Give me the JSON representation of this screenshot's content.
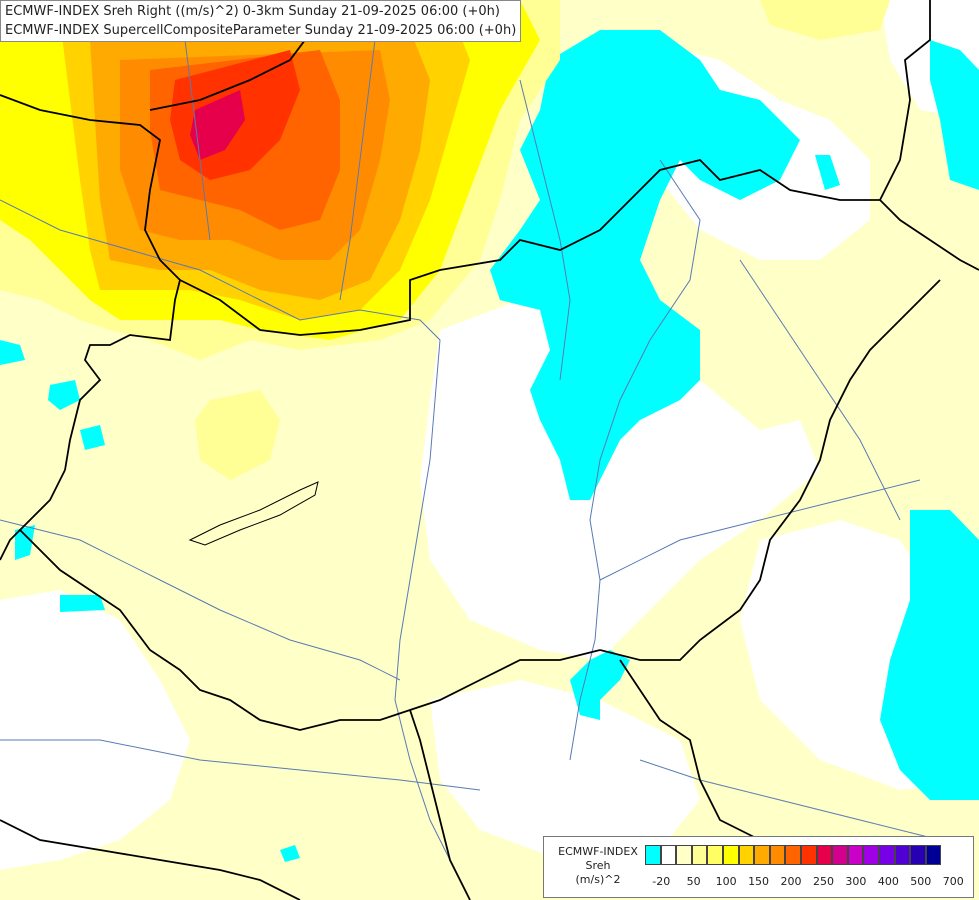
{
  "header": {
    "line1": "ECMWF-INDEX Sreh Right ((m/s)^2) 0-3km Sunday 21-09-2025 06:00 (+0h)",
    "line2": "ECMWF-INDEX SupercellCompositeParameter Sunday 21-09-2025 06:00 (+0h)"
  },
  "legend": {
    "title1": "ECMWF-INDEX",
    "title2": "Sreh",
    "title3": "(m/s)^2",
    "colors": [
      "#00ffff",
      "#ffffff",
      "#ffffc8",
      "#ffff96",
      "#ffff64",
      "#ffff00",
      "#ffd200",
      "#ffaa00",
      "#ff8c00",
      "#ff6400",
      "#ff3200",
      "#e6004b",
      "#d2008c",
      "#c800c8",
      "#a000e6",
      "#7800e6",
      "#5000d2",
      "#2800b4",
      "#000096"
    ],
    "ticks": [
      "-20",
      "50",
      "100",
      "150",
      "200",
      "250",
      "300",
      "400",
      "500",
      "700"
    ]
  },
  "map": {
    "colors": {
      "sea": "#ffffff",
      "cyan": "#00ffff",
      "pale": "#ffffc8",
      "lightyellow": "#ffff96",
      "yellow": "#ffff00",
      "gold": "#ffd200",
      "orange": "#ffaa00",
      "darkorange": "#ff8c00",
      "red_orange": "#ff6400",
      "red": "#ff3200",
      "crimson": "#e6004b",
      "border": "#000000",
      "river": "#5a7ab4"
    }
  }
}
